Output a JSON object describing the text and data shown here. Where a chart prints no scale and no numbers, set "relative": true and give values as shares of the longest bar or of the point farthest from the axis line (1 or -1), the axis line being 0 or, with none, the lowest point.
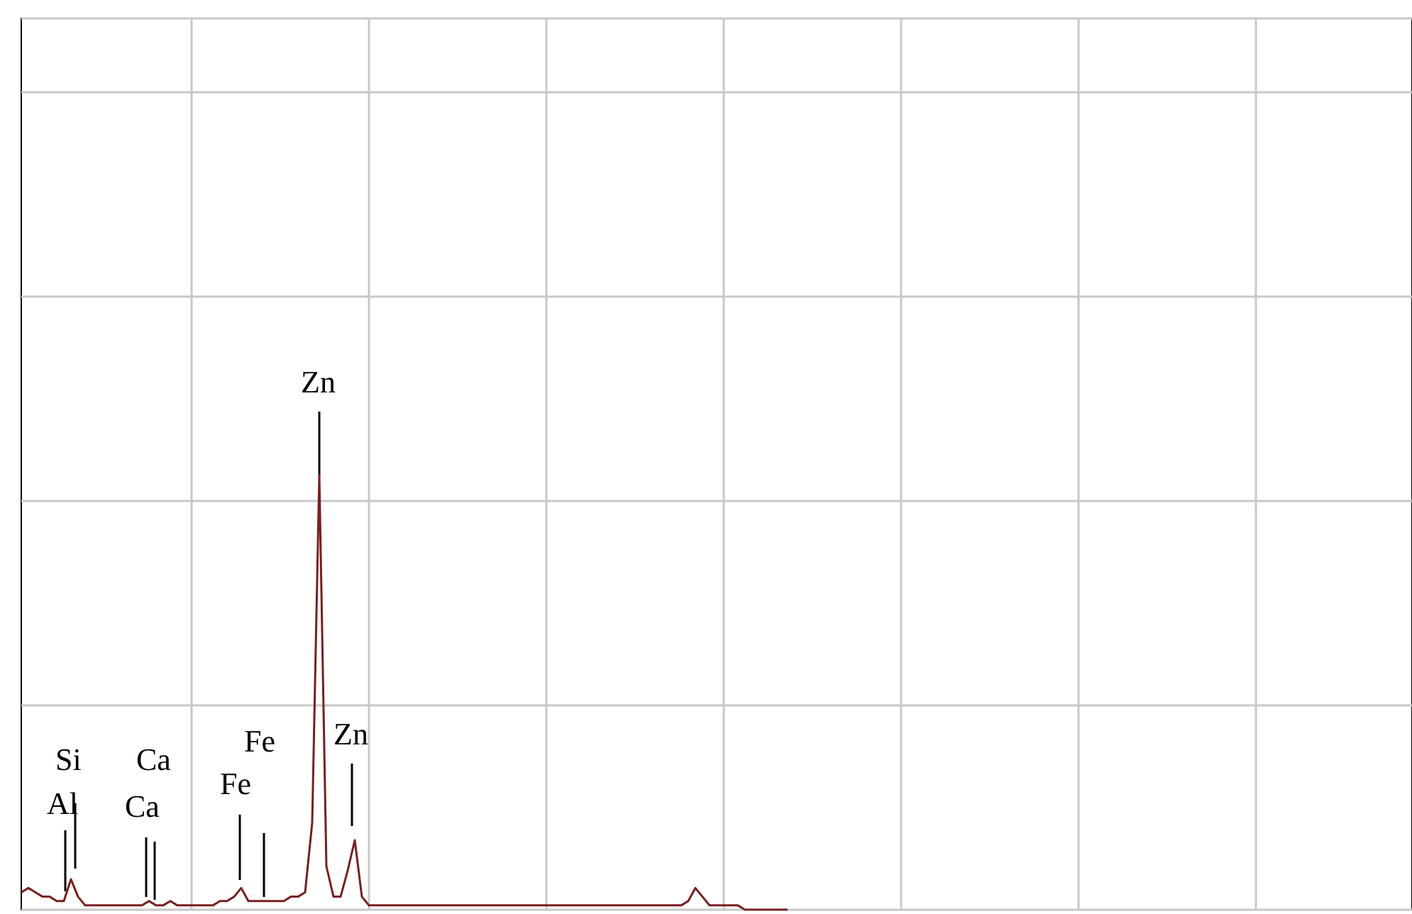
{
  "chart_data": {
    "type": "line",
    "relative": true,
    "grid": true,
    "color": "#7a1f1f",
    "annotations": [
      "Zn",
      "Si",
      "Ca",
      "Fe",
      "Zn",
      "Al",
      "Ca",
      "Fe"
    ],
    "categories": [
      null,
      null,
      null,
      null,
      null,
      null,
      null,
      null,
      null,
      null,
      null,
      null,
      null,
      null,
      null,
      null,
      null,
      null,
      null,
      null,
      null,
      null,
      null,
      null,
      null,
      null,
      null,
      null,
      null,
      null,
      null,
      null,
      null,
      null,
      null,
      null,
      null,
      null,
      null,
      null,
      null,
      null,
      null,
      null,
      null,
      null,
      null,
      null,
      null,
      null,
      null,
      null,
      null,
      null,
      null,
      null,
      null,
      null,
      null,
      null,
      null,
      null,
      null,
      null,
      null,
      null,
      null,
      null,
      null,
      null,
      null,
      null,
      null,
      null,
      null,
      null,
      null,
      null,
      null,
      null,
      null,
      null,
      null,
      null,
      null,
      null,
      null,
      null,
      null,
      null,
      null,
      null,
      null,
      null,
      null,
      null,
      null,
      null,
      null,
      null,
      null,
      null,
      null,
      null,
      null,
      null,
      null,
      null,
      null,
      null,
      null,
      null,
      null,
      null,
      null,
      null,
      null,
      null,
      null,
      null,
      null,
      null,
      null,
      null,
      null,
      null,
      null,
      null,
      null,
      null,
      null,
      null,
      null,
      null,
      null,
      null,
      null,
      null,
      null,
      null,
      null,
      null,
      null,
      null,
      null,
      null,
      null,
      null,
      null,
      null,
      null,
      null,
      null,
      null,
      null,
      null,
      null,
      null,
      null,
      null,
      null,
      null,
      null,
      null,
      null,
      null,
      null,
      null,
      null,
      null,
      null,
      null,
      null,
      null,
      null,
      null,
      null,
      null,
      null,
      null,
      null,
      null,
      null,
      null,
      null,
      null,
      null,
      null,
      null,
      null,
      null,
      null,
      null,
      null,
      null,
      null,
      null
    ],
    "values": [
      0.04,
      0.05,
      0.04,
      0.03,
      0.03,
      0.02,
      0.02,
      0.07,
      0.03,
      0.01,
      0.01,
      0.01,
      0.01,
      0.01,
      0.01,
      0.01,
      0.01,
      0.01,
      0.02,
      0.01,
      0.01,
      0.02,
      0.01,
      0.01,
      0.01,
      0.01,
      0.01,
      0.01,
      0.02,
      0.02,
      0.03,
      0.05,
      0.02,
      0.02,
      0.02,
      0.02,
      0.02,
      0.02,
      0.03,
      0.03,
      0.04,
      0.2,
      1,
      0.1,
      0.03,
      0.03,
      0.09,
      0.16,
      0.03,
      0.01,
      0.01,
      0.01,
      0.01,
      0.01,
      0.01,
      0.01,
      0.01,
      0.01,
      0.01,
      0.01,
      0.01,
      0.01,
      0.01,
      0.01,
      0.01,
      0.01,
      0.01,
      0.01,
      0.01,
      0.01,
      0.01,
      0.01,
      0.01,
      0.01,
      0.01,
      0.01,
      0.01,
      0.01,
      0.01,
      0.01,
      0.01,
      0.01,
      0.01,
      0.01,
      0.01,
      0.01,
      0.01,
      0.01,
      0.01,
      0.01,
      0.01,
      0.01,
      0.01,
      0.01,
      0.02,
      0.05,
      0.03,
      0.01,
      0.01,
      0.01,
      0.01,
      0.01,
      0,
      0,
      0,
      0,
      0,
      0,
      0,
      null,
      null,
      null,
      null,
      null,
      null,
      null,
      null,
      null,
      null,
      null,
      null,
      null,
      null,
      null,
      null,
      null,
      null,
      null,
      null,
      null,
      null,
      null,
      null,
      null,
      null,
      null,
      null,
      null,
      null,
      null,
      null,
      null,
      null,
      null,
      null,
      null,
      null,
      null,
      null,
      null,
      null,
      null,
      null,
      null,
      null,
      null,
      null,
      null,
      null,
      null,
      null,
      null,
      null,
      null,
      null,
      null,
      null,
      null,
      null,
      null,
      null,
      null,
      null,
      null,
      null,
      null,
      null,
      null,
      null,
      null,
      null,
      null,
      null,
      null,
      null,
      null,
      null,
      null,
      null,
      null,
      null,
      null,
      null,
      null,
      null,
      null,
      null
    ]
  }
}
